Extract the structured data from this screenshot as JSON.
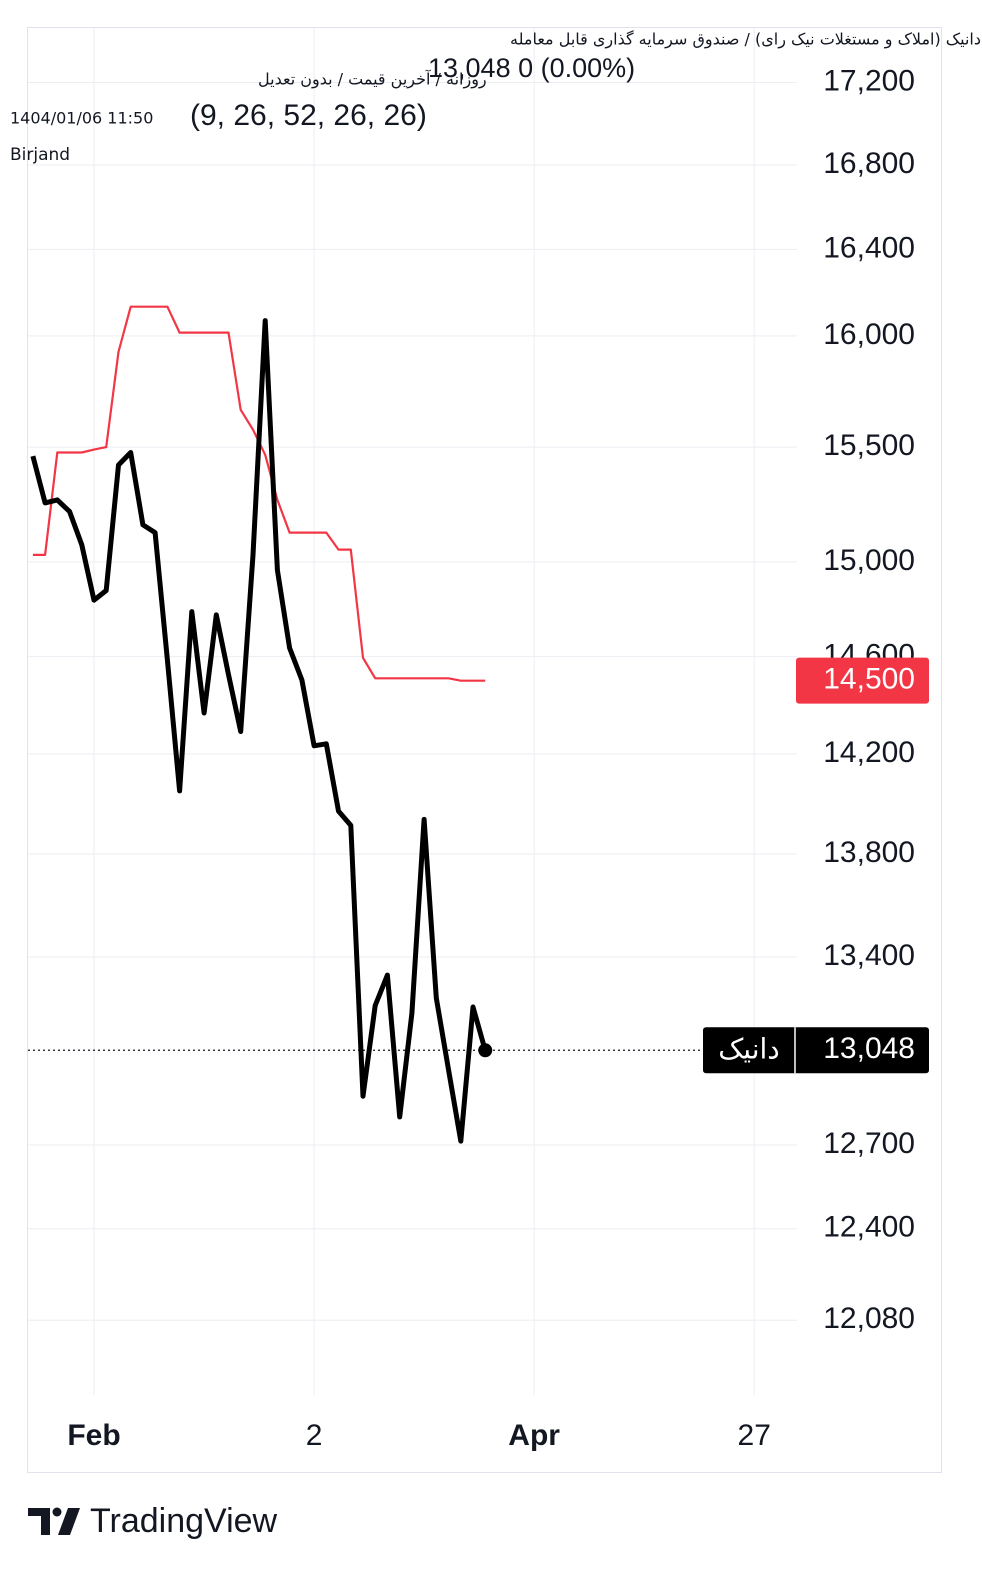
{
  "header": {
    "title": "دانیک (املاک و مستغلات نیک رای) / صندوق سرمایه گذاری قابل معامله",
    "settings": "روزانه / آخرین قیمت / بدون تعدیل",
    "quote": "13,048  0 (0.00%)",
    "timestamp": "1404/01/06 11:50",
    "indicator": "(9, 26, 52, 26, 26)",
    "location": "Birjand"
  },
  "chart_data": {
    "type": "line",
    "log_scale": true,
    "grid": true,
    "x": [
      0,
      1,
      2,
      3,
      4,
      5,
      6,
      7,
      8,
      9,
      10,
      11,
      12,
      13,
      14,
      15,
      16,
      17,
      18,
      19,
      20,
      21,
      22,
      23,
      24,
      25,
      26,
      27,
      28,
      29,
      30,
      31,
      32,
      33,
      34,
      35,
      36,
      37
    ],
    "xlim": [
      -0.4,
      62.5
    ],
    "xticks": [
      {
        "value": 5,
        "label": "Feb"
      },
      {
        "value": 23,
        "label": "2"
      },
      {
        "value": 41,
        "label": "Apr"
      },
      {
        "value": 59,
        "label": "27"
      }
    ],
    "ylim": [
      11825,
      17470
    ],
    "yticks": [
      {
        "value": 12080,
        "label": "12,080"
      },
      {
        "value": 12400,
        "label": "12,400"
      },
      {
        "value": 12700,
        "label": "12,700"
      },
      {
        "value": 13400,
        "label": "13,400"
      },
      {
        "value": 13800,
        "label": "13,800"
      },
      {
        "value": 14200,
        "label": "14,200"
      },
      {
        "value": 14600,
        "label": "14,600"
      },
      {
        "value": 15000,
        "label": "15,000"
      },
      {
        "value": 15500,
        "label": "15,500"
      },
      {
        "value": 16000,
        "label": "16,000"
      },
      {
        "value": 16400,
        "label": "16,400"
      },
      {
        "value": 16800,
        "label": "16,800"
      },
      {
        "value": 17200,
        "label": "17,200"
      }
    ],
    "series": [
      {
        "name": "دانیک",
        "color": "#000000",
        "last_label": "13,048",
        "values": [
          15460,
          15255,
          15268,
          15217,
          15073,
          14837,
          14878,
          15421,
          15476,
          15160,
          15126,
          14586,
          14051,
          14789,
          14367,
          14775,
          14525,
          14291,
          15030,
          16070,
          14965,
          14636,
          14503,
          14233,
          14241,
          13970,
          13913,
          12878,
          13216,
          13331,
          12802,
          13187,
          13937,
          13244,
          12974,
          12714,
          13210,
          13048
        ]
      },
      {
        "color": "#f23645",
        "last_label": "14,500",
        "values": [
          15030,
          15030,
          15476,
          15476,
          15476,
          15489,
          15500,
          15927,
          16134,
          16134,
          16134,
          16134,
          16015,
          16015,
          16015,
          16015,
          16015,
          15666,
          15577,
          15466,
          15268,
          15126,
          15126,
          15126,
          15126,
          15053,
          15053,
          14595,
          14510,
          14510,
          14510,
          14510,
          14510,
          14510,
          14510,
          14500,
          14500,
          14500
        ]
      }
    ]
  },
  "footer": {
    "brand": "TradingView"
  }
}
